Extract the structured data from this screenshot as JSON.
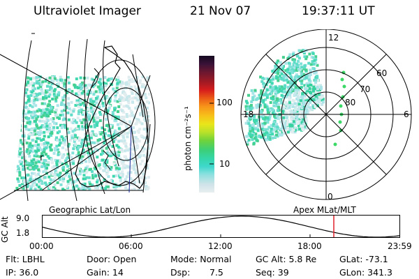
{
  "header": {
    "instrument": "Ultraviolet Imager",
    "date": "21 Nov 07",
    "time": "19:37:11 UT"
  },
  "geo_map": {
    "label": "Geographic Lat/Lon",
    "grid_marker": "r"
  },
  "colorbar": {
    "ylabel": "photon cm⁻²s⁻¹",
    "ticks": [
      "100",
      "10"
    ],
    "scale": "log",
    "colors": [
      "#e8eef0",
      "#cfe3e8",
      "#8fe0e0",
      "#3fd8cc",
      "#35d6a8",
      "#3ccf78",
      "#6fd23c",
      "#b8e12a",
      "#e9e61a",
      "#f7c21a",
      "#f7941a",
      "#ea5a16",
      "#d61d1d",
      "#a01a24",
      "#6b1830",
      "#3a1238",
      "#140a20"
    ]
  },
  "polar_map": {
    "label": "Apex MLat/MLT",
    "mlt_labels": [
      "12",
      "18",
      "6",
      "0"
    ],
    "mlat_labels": [
      "60",
      "70",
      "80"
    ]
  },
  "altitude_plot": {
    "ylabel": "GC Alt",
    "y_ticks": [
      "9.0",
      "1.8"
    ],
    "x_ticks": [
      "00:00",
      "06:00",
      "12:00",
      "18:00",
      "23:59"
    ],
    "current_time_color": "#e0202a"
  },
  "status": {
    "flt": "Flt: LBHL",
    "ip": "IP: 36.0",
    "door": "Door: Open",
    "gain": "Gain: 14",
    "mode": "Mode: Normal",
    "dsp_label": "Dsp:",
    "dsp_value": "7.5",
    "gc_alt": "GC Alt: 5.8 Re",
    "seq": "Seq: 39",
    "glat": "GLat: -73.1",
    "glon": "GLon: 341.3"
  }
}
